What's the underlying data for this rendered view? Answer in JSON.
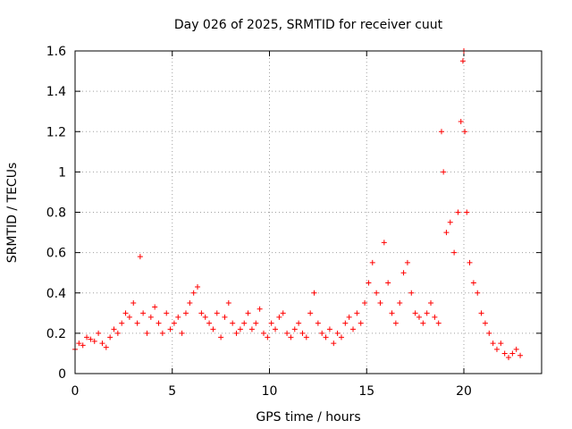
{
  "chart_data": {
    "type": "scatter",
    "title": "Day 026 of 2025, SRMTID for receiver cuut",
    "xlabel": "GPS time / hours",
    "ylabel": "SRMTID / TECUs",
    "xlim": [
      0,
      24
    ],
    "ylim": [
      0,
      1.6
    ],
    "xticks": [
      0,
      5,
      10,
      15,
      20
    ],
    "xtick_labels": [
      "0",
      "5",
      "10",
      "15",
      "20"
    ],
    "yticks": [
      0,
      0.2,
      0.4,
      0.6,
      0.8,
      1.0,
      1.2,
      1.4,
      1.6
    ],
    "ytick_labels": [
      "0",
      "0.2",
      "0.4",
      "0.6",
      "0.8",
      "1",
      "1.2",
      "1.4",
      "1.6"
    ],
    "grid": true,
    "marker": "plus",
    "color": "#ff0000",
    "series": [
      {
        "name": "SRMTID",
        "x": [
          0.0,
          0.2,
          0.4,
          0.6,
          0.8,
          1.0,
          1.2,
          1.4,
          1.6,
          1.8,
          2.0,
          2.2,
          2.4,
          2.6,
          2.8,
          3.0,
          3.2,
          3.35,
          3.5,
          3.7,
          3.9,
          4.1,
          4.3,
          4.5,
          4.7,
          4.9,
          5.1,
          5.3,
          5.5,
          5.7,
          5.9,
          6.1,
          6.3,
          6.5,
          6.7,
          6.9,
          7.1,
          7.3,
          7.5,
          7.7,
          7.9,
          8.1,
          8.3,
          8.5,
          8.7,
          8.9,
          9.1,
          9.3,
          9.5,
          9.7,
          9.9,
          10.1,
          10.3,
          10.5,
          10.7,
          10.9,
          11.1,
          11.3,
          11.5,
          11.7,
          11.9,
          12.1,
          12.3,
          12.5,
          12.7,
          12.9,
          13.1,
          13.3,
          13.5,
          13.7,
          13.9,
          14.1,
          14.3,
          14.5,
          14.7,
          14.9,
          15.1,
          15.3,
          15.5,
          15.7,
          15.9,
          16.1,
          16.3,
          16.5,
          16.7,
          16.9,
          17.1,
          17.3,
          17.5,
          17.7,
          17.9,
          18.1,
          18.3,
          18.5,
          18.7,
          18.85,
          18.95,
          19.1,
          19.3,
          19.5,
          19.7,
          19.85,
          19.95,
          20.0,
          20.05,
          20.15,
          20.3,
          20.5,
          20.7,
          20.9,
          21.1,
          21.3,
          21.5,
          21.7,
          21.9,
          22.1,
          22.3,
          22.5,
          22.7,
          22.9
        ],
        "y": [
          0.12,
          0.15,
          0.14,
          0.18,
          0.17,
          0.16,
          0.2,
          0.15,
          0.13,
          0.18,
          0.22,
          0.2,
          0.25,
          0.3,
          0.28,
          0.35,
          0.25,
          0.58,
          0.3,
          0.2,
          0.28,
          0.33,
          0.25,
          0.2,
          0.3,
          0.22,
          0.25,
          0.28,
          0.2,
          0.3,
          0.35,
          0.4,
          0.43,
          0.3,
          0.28,
          0.25,
          0.22,
          0.3,
          0.18,
          0.28,
          0.35,
          0.25,
          0.2,
          0.22,
          0.25,
          0.3,
          0.22,
          0.25,
          0.32,
          0.2,
          0.18,
          0.25,
          0.22,
          0.28,
          0.3,
          0.2,
          0.18,
          0.22,
          0.25,
          0.2,
          0.18,
          0.3,
          0.4,
          0.25,
          0.2,
          0.18,
          0.22,
          0.15,
          0.2,
          0.18,
          0.25,
          0.28,
          0.22,
          0.3,
          0.25,
          0.35,
          0.45,
          0.55,
          0.4,
          0.35,
          0.65,
          0.45,
          0.3,
          0.25,
          0.35,
          0.5,
          0.55,
          0.4,
          0.3,
          0.28,
          0.25,
          0.3,
          0.35,
          0.28,
          0.25,
          1.2,
          1.0,
          0.7,
          0.75,
          0.6,
          0.8,
          1.25,
          1.55,
          1.6,
          1.2,
          0.8,
          0.55,
          0.45,
          0.4,
          0.3,
          0.25,
          0.2,
          0.15,
          0.12,
          0.15,
          0.1,
          0.08,
          0.1,
          0.12,
          0.09
        ]
      }
    ]
  }
}
